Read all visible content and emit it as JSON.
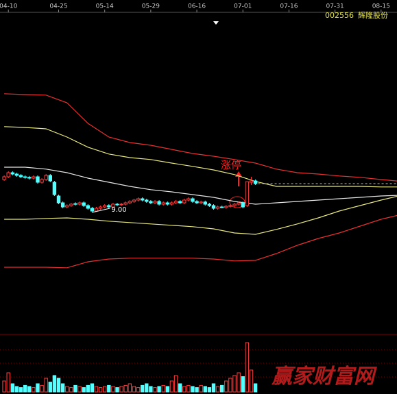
{
  "chart_data": {
    "type": "candlestick",
    "code": "002556",
    "name": "辉隆股份",
    "annotation": "涨停",
    "low_label": "9.00",
    "watermark": "赢家财富网",
    "xlim": [
      -1,
      93.8
    ],
    "xticks": [
      {
        "value": 1,
        "label": "04-10"
      },
      {
        "value": 13,
        "label": "04-25"
      },
      {
        "value": 24,
        "label": "05-14"
      },
      {
        "value": 35,
        "label": "05-29"
      },
      {
        "value": 46,
        "label": "06-16"
      },
      {
        "value": 57,
        "label": "07-01"
      },
      {
        "value": 68,
        "label": "07-16"
      },
      {
        "value": 79,
        "label": "07-31"
      },
      {
        "value": 90,
        "label": "08-15"
      }
    ],
    "ylim": [
      4.75,
      16.25
    ],
    "up_color": "#ff3c3c",
    "down_color": "#54ffff",
    "candles": {
      "open": [
        10.2,
        10.3,
        10.45,
        10.4,
        10.35,
        10.3,
        10.28,
        10.25,
        10.3,
        10.1,
        10.2,
        10.35,
        10.1,
        9.6,
        9.35,
        9.2,
        9.25,
        9.32,
        9.3,
        9.35,
        9.25,
        9.15,
        9.05,
        9.15,
        9.2,
        9.25,
        9.2,
        9.3,
        9.28,
        9.3,
        9.35,
        9.4,
        9.45,
        9.5,
        9.45,
        9.4,
        9.35,
        9.4,
        9.3,
        9.35,
        9.3,
        9.35,
        9.4,
        9.35,
        9.45,
        9.5,
        9.4,
        9.35,
        9.38,
        9.3,
        9.25,
        9.15,
        9.2,
        9.18,
        9.22,
        9.25,
        9.3,
        9.35,
        9.25,
        10.1,
        10.15
      ],
      "high": [
        10.35,
        10.5,
        10.5,
        10.45,
        10.4,
        10.35,
        10.33,
        10.35,
        10.35,
        10.25,
        10.4,
        10.4,
        10.15,
        9.65,
        9.4,
        9.3,
        9.35,
        9.37,
        9.4,
        9.4,
        9.3,
        9.2,
        9.2,
        9.25,
        9.3,
        9.3,
        9.35,
        9.35,
        9.35,
        9.4,
        9.45,
        9.5,
        9.55,
        9.55,
        9.5,
        9.45,
        9.45,
        9.45,
        9.4,
        9.4,
        9.4,
        9.45,
        9.45,
        9.5,
        9.55,
        9.55,
        9.45,
        9.43,
        9.43,
        9.35,
        9.3,
        9.25,
        9.25,
        9.27,
        9.3,
        9.35,
        9.4,
        9.4,
        10.12,
        10.3,
        10.2
      ],
      "low": [
        10.15,
        10.25,
        10.35,
        10.3,
        10.25,
        10.23,
        10.2,
        10.2,
        10.05,
        10.05,
        10.15,
        10.1,
        9.6,
        9.3,
        9.15,
        9.15,
        9.2,
        9.25,
        9.25,
        9.2,
        9.1,
        9.0,
        9.02,
        9.1,
        9.15,
        9.15,
        9.15,
        9.23,
        9.23,
        9.25,
        9.3,
        9.35,
        9.4,
        9.4,
        9.35,
        9.3,
        9.3,
        9.25,
        9.25,
        9.25,
        9.25,
        9.3,
        9.3,
        9.3,
        9.4,
        9.35,
        9.3,
        9.3,
        9.25,
        9.2,
        9.1,
        9.1,
        9.15,
        9.13,
        9.17,
        9.2,
        9.25,
        9.15,
        9.2,
        10.0,
        10.0
      ],
      "close": [
        10.3,
        10.45,
        10.4,
        10.35,
        10.3,
        10.28,
        10.25,
        10.3,
        10.1,
        10.2,
        10.35,
        10.15,
        9.65,
        9.35,
        9.2,
        9.25,
        9.3,
        9.3,
        9.35,
        9.25,
        9.15,
        9.05,
        9.15,
        9.2,
        9.25,
        9.2,
        9.3,
        9.28,
        9.3,
        9.35,
        9.4,
        9.45,
        9.5,
        9.45,
        9.4,
        9.35,
        9.4,
        9.3,
        9.35,
        9.3,
        9.35,
        9.4,
        9.35,
        9.45,
        9.5,
        9.4,
        9.35,
        9.38,
        9.3,
        9.25,
        9.15,
        9.2,
        9.18,
        9.22,
        9.25,
        9.3,
        9.35,
        9.2,
        10.12,
        10.15,
        10.05
      ]
    },
    "volume": {
      "ylim": [
        0,
        100
      ],
      "values": [
        20,
        35,
        15,
        10,
        8,
        12,
        10,
        8,
        15,
        12,
        25,
        18,
        30,
        25,
        15,
        10,
        8,
        12,
        10,
        8,
        12,
        15,
        10,
        8,
        10,
        12,
        10,
        8,
        10,
        12,
        15,
        10,
        8,
        12,
        15,
        10,
        8,
        10,
        12,
        10,
        20,
        30,
        15,
        10,
        12,
        10,
        8,
        12,
        10,
        8,
        15,
        10,
        12,
        20,
        25,
        30,
        35,
        28,
        90,
        40,
        15
      ]
    },
    "bands": {
      "x": [
        0,
        5,
        10,
        15,
        20,
        25,
        30,
        35,
        40,
        45,
        50,
        55,
        60,
        65,
        70,
        75,
        80,
        85,
        90,
        95
      ],
      "series": [
        {
          "color": "#e83030",
          "values": [
            13.33,
            13.3,
            13.28,
            13.0,
            12.25,
            11.75,
            11.55,
            11.45,
            11.3,
            11.15,
            11.05,
            10.93,
            10.8,
            10.58,
            10.45,
            10.4,
            10.33,
            10.28,
            10.2,
            10.13
          ]
        },
        {
          "color": "#e8e880",
          "values": [
            12.13,
            12.1,
            12.05,
            11.75,
            11.38,
            11.13,
            11.0,
            10.93,
            10.8,
            10.68,
            10.55,
            10.38,
            10.13,
            9.95,
            9.95,
            9.95,
            9.95,
            9.95,
            9.93,
            9.93
          ]
        },
        {
          "color": "#e6e6e6",
          "values": [
            10.65,
            10.65,
            10.58,
            10.45,
            10.25,
            10.1,
            9.95,
            9.83,
            9.75,
            9.65,
            9.55,
            9.4,
            9.3,
            9.35,
            9.4,
            9.45,
            9.5,
            9.55,
            9.6,
            9.63
          ]
        },
        {
          "color": "#e8e880",
          "values": [
            8.75,
            8.75,
            8.78,
            8.8,
            8.75,
            8.68,
            8.63,
            8.58,
            8.53,
            8.48,
            8.4,
            8.25,
            8.2,
            8.38,
            8.58,
            8.8,
            9.05,
            9.25,
            9.45,
            9.63
          ]
        },
        {
          "color": "#e83030",
          "values": [
            7.0,
            7.0,
            7.0,
            6.98,
            7.2,
            7.3,
            7.33,
            7.33,
            7.33,
            7.33,
            7.3,
            7.23,
            7.25,
            7.5,
            7.8,
            8.05,
            8.25,
            8.5,
            8.75,
            8.93
          ]
        }
      ]
    }
  }
}
